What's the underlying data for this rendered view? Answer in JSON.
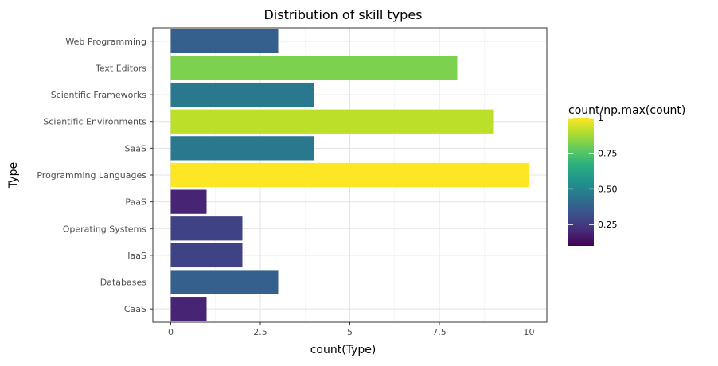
{
  "chart_data": {
    "type": "bar",
    "orientation": "horizontal",
    "title": "Distribution of skill types",
    "xlabel": "count(Type)",
    "ylabel": "Type",
    "xlim": [
      -0.5,
      10.5
    ],
    "x_ticks": [
      0,
      2.5,
      5,
      7.5,
      10
    ],
    "x_tick_labels": [
      "0",
      "2.5",
      "5",
      "7.5",
      "10"
    ],
    "categories": [
      "Web Programming",
      "Text Editors",
      "Scientific Frameworks",
      "Scientific Environments",
      "SaaS",
      "Programming Languages",
      "PaaS",
      "Operating Systems",
      "IaaS",
      "Databases",
      "CaaS"
    ],
    "values": [
      3,
      8,
      4,
      9,
      4,
      10,
      1,
      2,
      2,
      3,
      1
    ],
    "fill_variable": "count/np.max(count)",
    "grid": true,
    "legend": {
      "title": "count/np.max(count)",
      "placement": "right",
      "range": [
        0.1,
        1
      ],
      "ticks": [
        0.25,
        0.5,
        0.75,
        1
      ],
      "tick_labels": [
        "0.25",
        "0.50",
        "0.75",
        "1"
      ],
      "colormap": "viridis"
    }
  }
}
